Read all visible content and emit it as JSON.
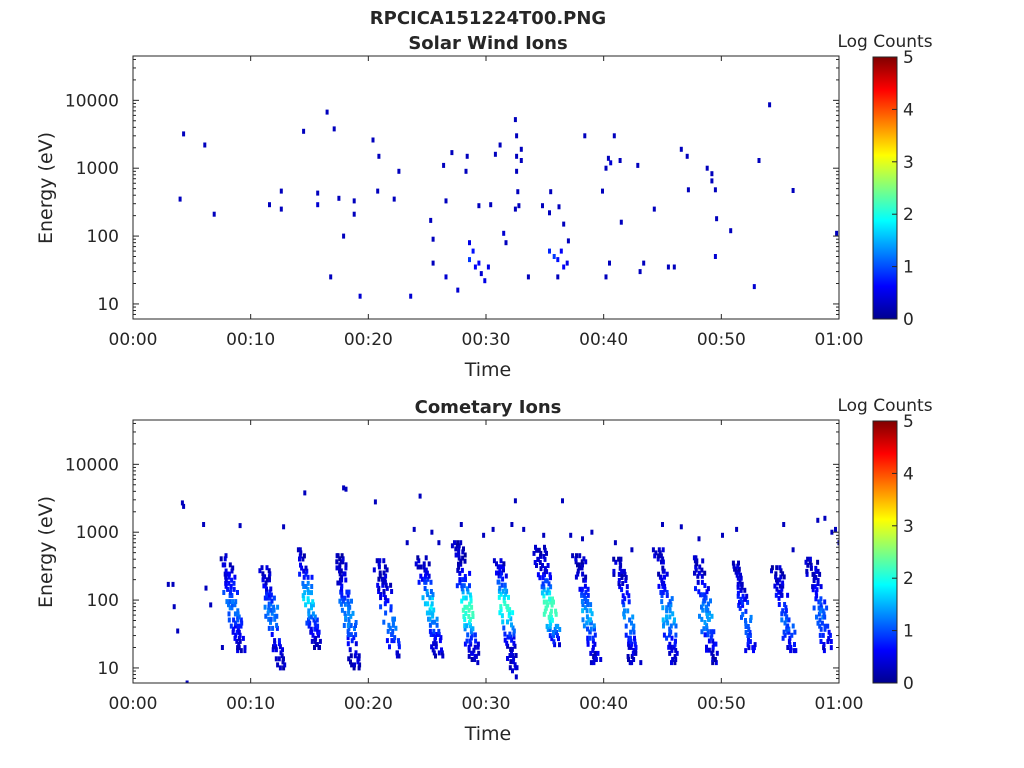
{
  "figure": {
    "title": "RPCICA151224T00.PNG"
  },
  "chart_data": [
    {
      "type": "heatmap",
      "title": "Solar Wind Ions",
      "xlabel": "Time",
      "ylabel": "Energy (eV)",
      "xlim_minutes": [
        0,
        60
      ],
      "x_tick_labels": [
        "00:00",
        "00:10",
        "00:20",
        "00:30",
        "00:40",
        "00:50",
        "01:00"
      ],
      "y_scale": "log",
      "ylim": [
        6,
        45000
      ],
      "y_ticks": [
        10,
        100,
        1000,
        10000
      ],
      "y_tick_labels": [
        "10",
        "100",
        "1000",
        "10000"
      ],
      "grid": false,
      "colorbar": {
        "label": "Log Counts",
        "range": [
          0,
          5
        ],
        "tick_labels": [
          "0",
          "1",
          "2",
          "3",
          "4",
          "5"
        ],
        "colormap": "jet"
      },
      "points": [
        [
          4.0,
          350,
          0.3
        ],
        [
          4.3,
          3200,
          0.3
        ],
        [
          6.1,
          2200,
          0.3
        ],
        [
          6.9,
          210,
          0.3
        ],
        [
          11.6,
          290,
          0.3
        ],
        [
          12.6,
          460,
          0.3
        ],
        [
          12.6,
          250,
          0.3
        ],
        [
          14.5,
          3500,
          0.3
        ],
        [
          15.7,
          430,
          0.3
        ],
        [
          15.7,
          290,
          0.4
        ],
        [
          16.5,
          6700,
          0.3
        ],
        [
          16.8,
          25,
          0.3
        ],
        [
          17.1,
          3800,
          0.3
        ],
        [
          17.5,
          360,
          0.3
        ],
        [
          17.9,
          100,
          0.3
        ],
        [
          18.8,
          330,
          0.3
        ],
        [
          18.8,
          210,
          0.3
        ],
        [
          19.3,
          13,
          0.4
        ],
        [
          20.4,
          2600,
          0.3
        ],
        [
          20.9,
          1500,
          0.3
        ],
        [
          20.8,
          460,
          0.3
        ],
        [
          22.2,
          350,
          0.3
        ],
        [
          22.6,
          900,
          0.3
        ],
        [
          23.6,
          13,
          0.4
        ],
        [
          25.3,
          170,
          0.3
        ],
        [
          25.5,
          90,
          0.3
        ],
        [
          25.5,
          40,
          0.3
        ],
        [
          26.4,
          1100,
          0.3
        ],
        [
          26.6,
          330,
          0.3
        ],
        [
          26.6,
          25,
          0.4
        ],
        [
          27.1,
          1700,
          0.3
        ],
        [
          27.6,
          16,
          0.4
        ],
        [
          28.4,
          1500,
          0.3
        ],
        [
          28.3,
          900,
          0.3
        ],
        [
          28.6,
          80,
          0.5
        ],
        [
          28.9,
          60,
          0.7
        ],
        [
          28.6,
          45,
          0.9
        ],
        [
          29.1,
          35,
          0.6
        ],
        [
          29.4,
          40,
          0.6
        ],
        [
          29.6,
          28,
          0.4
        ],
        [
          30.2,
          35,
          0.5
        ],
        [
          29.9,
          22,
          0.5
        ],
        [
          29.4,
          280,
          0.3
        ],
        [
          30.4,
          290,
          0.3
        ],
        [
          30.8,
          1600,
          0.3
        ],
        [
          31.2,
          2200,
          0.3
        ],
        [
          31.5,
          110,
          0.4
        ],
        [
          31.7,
          80,
          0.3
        ],
        [
          32.5,
          5200,
          0.3
        ],
        [
          32.6,
          3000,
          0.3
        ],
        [
          32.6,
          1500,
          0.3
        ],
        [
          32.6,
          900,
          0.3
        ],
        [
          32.7,
          450,
          0.3
        ],
        [
          32.5,
          250,
          0.3
        ],
        [
          33.0,
          1900,
          0.3
        ],
        [
          33.0,
          1300,
          0.3
        ],
        [
          32.8,
          280,
          0.3
        ],
        [
          33.6,
          25,
          0.3
        ],
        [
          34.8,
          280,
          0.3
        ],
        [
          35.5,
          450,
          0.3
        ],
        [
          35.4,
          220,
          0.3
        ],
        [
          35.4,
          60,
          0.8
        ],
        [
          35.8,
          50,
          0.9
        ],
        [
          36.1,
          45,
          0.7
        ],
        [
          36.4,
          60,
          0.6
        ],
        [
          36.6,
          35,
          0.6
        ],
        [
          36.2,
          270,
          0.3
        ],
        [
          36.6,
          150,
          0.3
        ],
        [
          36.9,
          40,
          0.5
        ],
        [
          36.1,
          25,
          0.3
        ],
        [
          37.0,
          85,
          0.3
        ],
        [
          38.4,
          3000,
          0.3
        ],
        [
          39.9,
          460,
          0.3
        ],
        [
          40.4,
          1400,
          0.3
        ],
        [
          40.6,
          1200,
          0.4
        ],
        [
          40.9,
          3000,
          0.3
        ],
        [
          40.2,
          1000,
          0.3
        ],
        [
          40.5,
          40,
          0.3
        ],
        [
          40.2,
          25,
          0.3
        ],
        [
          41.4,
          1300,
          0.3
        ],
        [
          41.5,
          160,
          0.3
        ],
        [
          42.9,
          1100,
          0.3
        ],
        [
          43.1,
          30,
          0.3
        ],
        [
          43.4,
          40,
          0.3
        ],
        [
          44.3,
          250,
          0.3
        ],
        [
          45.5,
          35,
          0.3
        ],
        [
          46.0,
          35,
          0.3
        ],
        [
          46.6,
          1900,
          0.3
        ],
        [
          47.1,
          1500,
          0.3
        ],
        [
          47.2,
          480,
          0.3
        ],
        [
          48.8,
          1000,
          0.3
        ],
        [
          49.2,
          830,
          0.3
        ],
        [
          49.2,
          650,
          0.3
        ],
        [
          49.5,
          480,
          0.3
        ],
        [
          49.6,
          180,
          0.3
        ],
        [
          49.5,
          50,
          0.4
        ],
        [
          50.8,
          120,
          0.3
        ],
        [
          52.8,
          18,
          0.4
        ],
        [
          53.2,
          1300,
          0.3
        ],
        [
          54.1,
          8600,
          0.3
        ],
        [
          56.1,
          470,
          0.3
        ],
        [
          59.8,
          110,
          0.3
        ]
      ]
    },
    {
      "type": "heatmap",
      "title": "Cometary Ions",
      "xlabel": "Time",
      "ylabel": "Energy (eV)",
      "xlim_minutes": [
        0,
        60
      ],
      "x_tick_labels": [
        "00:00",
        "00:10",
        "00:20",
        "00:30",
        "00:40",
        "00:50",
        "01:00"
      ],
      "y_scale": "log",
      "ylim": [
        6,
        45000
      ],
      "y_ticks": [
        10,
        100,
        1000,
        10000
      ],
      "y_tick_labels": [
        "10",
        "100",
        "1000",
        "10000"
      ],
      "grid": false,
      "colorbar": {
        "label": "Log Counts",
        "range": [
          0,
          5
        ],
        "tick_labels": [
          "0",
          "1",
          "2",
          "3",
          "4",
          "5"
        ],
        "colormap": "jet"
      },
      "stripes": [
        {
          "t": 9.3,
          "top": 450,
          "bottom": 18,
          "peak": 0.8,
          "peak_e": 80
        },
        {
          "t": 12.7,
          "top": 300,
          "bottom": 10,
          "peak": 0.9,
          "peak_e": 60
        },
        {
          "t": 15.8,
          "top": 550,
          "bottom": 20,
          "peak": 1.3,
          "peak_e": 100
        },
        {
          "t": 19.1,
          "top": 450,
          "bottom": 10,
          "peak": 1.0,
          "peak_e": 60
        },
        {
          "t": 22.5,
          "top": 380,
          "bottom": 15,
          "peak": 0.8,
          "peak_e": 45
        },
        {
          "t": 26.1,
          "top": 420,
          "bottom": 15,
          "peak": 1.4,
          "peak_e": 80
        },
        {
          "t": 29.2,
          "top": 700,
          "bottom": 12,
          "peak": 1.9,
          "peak_e": 70
        },
        {
          "t": 32.7,
          "top": 380,
          "bottom": 6,
          "peak": 1.7,
          "peak_e": 80
        },
        {
          "t": 36.1,
          "top": 600,
          "bottom": 22,
          "peak": 2.0,
          "peak_e": 75
        },
        {
          "t": 39.4,
          "top": 450,
          "bottom": 12,
          "peak": 1.1,
          "peak_e": 60
        },
        {
          "t": 42.8,
          "top": 400,
          "bottom": 12,
          "peak": 0.9,
          "peak_e": 55
        },
        {
          "t": 46.2,
          "top": 550,
          "bottom": 12,
          "peak": 1.1,
          "peak_e": 60
        },
        {
          "t": 49.5,
          "top": 420,
          "bottom": 12,
          "peak": 1.0,
          "peak_e": 60
        },
        {
          "t": 52.8,
          "top": 350,
          "bottom": 18,
          "peak": 0.8,
          "peak_e": 50
        },
        {
          "t": 56.2,
          "top": 300,
          "bottom": 18,
          "peak": 0.7,
          "peak_e": 50
        },
        {
          "t": 59.2,
          "top": 400,
          "bottom": 18,
          "peak": 0.8,
          "peak_e": 60
        }
      ],
      "points": [
        [
          3.0,
          170,
          0.3
        ],
        [
          3.4,
          170,
          0.3
        ],
        [
          3.5,
          80,
          0.3
        ],
        [
          3.8,
          35,
          0.3
        ],
        [
          4.2,
          2700,
          0.3
        ],
        [
          4.3,
          2400,
          0.3
        ],
        [
          4.6,
          6,
          0.3
        ],
        [
          6.0,
          1300,
          0.3
        ],
        [
          6.2,
          150,
          0.3
        ],
        [
          6.6,
          85,
          0.3
        ],
        [
          7.6,
          20,
          0.3
        ],
        [
          9.1,
          1250,
          0.3
        ],
        [
          12.8,
          1200,
          0.3
        ],
        [
          14.6,
          3800,
          0.3
        ],
        [
          17.9,
          4500,
          0.3
        ],
        [
          18.1,
          4300,
          0.3
        ],
        [
          20.6,
          2800,
          0.3
        ],
        [
          23.3,
          700,
          0.3
        ],
        [
          23.9,
          1100,
          0.3
        ],
        [
          24.4,
          3400,
          0.3
        ],
        [
          25.4,
          1000,
          0.3
        ],
        [
          26.0,
          700,
          0.3
        ],
        [
          27.9,
          1300,
          0.3
        ],
        [
          29.8,
          900,
          0.3
        ],
        [
          30.6,
          1100,
          0.3
        ],
        [
          32.2,
          1300,
          0.3
        ],
        [
          32.5,
          2900,
          0.3
        ],
        [
          33.2,
          1100,
          0.3
        ],
        [
          34.9,
          900,
          0.3
        ],
        [
          36.5,
          2900,
          0.3
        ],
        [
          37.2,
          900,
          0.3
        ],
        [
          38.2,
          800,
          0.3
        ],
        [
          39.0,
          1000,
          0.3
        ],
        [
          41.0,
          700,
          0.3
        ],
        [
          42.4,
          550,
          0.3
        ],
        [
          45.0,
          1300,
          0.3
        ],
        [
          46.6,
          1200,
          0.3
        ],
        [
          48.1,
          800,
          0.3
        ],
        [
          50.1,
          900,
          0.3
        ],
        [
          51.3,
          1100,
          0.3
        ],
        [
          55.3,
          1300,
          0.3
        ],
        [
          56.1,
          550,
          0.3
        ],
        [
          58.2,
          1500,
          0.3
        ],
        [
          58.8,
          1600,
          0.3
        ],
        [
          59.4,
          1000,
          0.3
        ],
        [
          59.7,
          1100,
          0.3
        ],
        [
          60.0,
          700,
          0.3
        ]
      ]
    }
  ]
}
